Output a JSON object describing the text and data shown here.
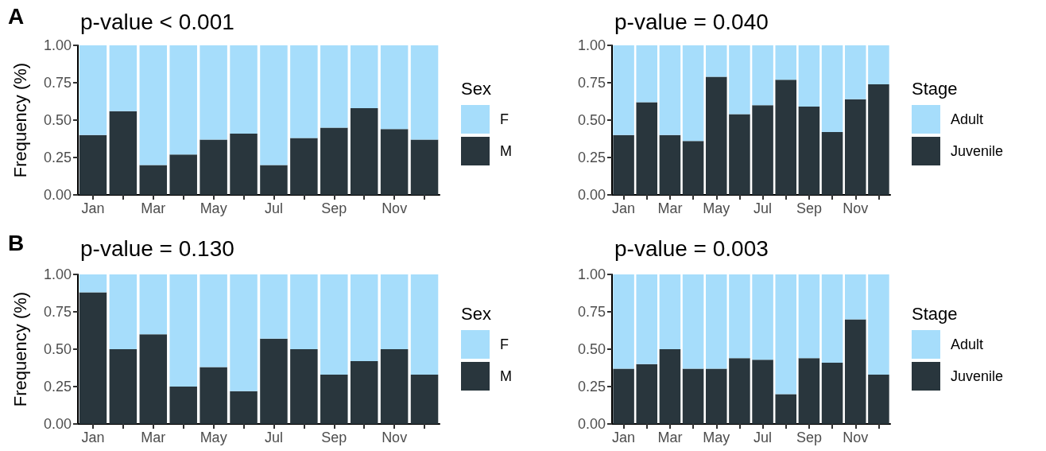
{
  "chart_data": [
    {
      "type": "bar",
      "title": "p-value < 0.001",
      "ylabel": "Frequency (%)",
      "legend_title": "Sex",
      "annotations": [
        "A"
      ],
      "categories": [
        "Jan",
        null,
        "Mar",
        null,
        "May",
        null,
        "Jul",
        null,
        "Sep",
        null,
        "Nov",
        null
      ],
      "stacked": true,
      "legend": "right",
      "grid": false,
      "ylim": [
        0,
        1
      ],
      "yticks": [
        {
          "value": 0,
          "label": "0.00"
        },
        {
          "value": 0.25,
          "label": "0.25"
        },
        {
          "value": 0.5,
          "label": "0.50"
        },
        {
          "value": 0.75,
          "label": "0.75"
        },
        {
          "value": 1,
          "label": "1.00"
        }
      ],
      "series": [
        {
          "name": "M",
          "color": "#29363d",
          "values": [
            0.4,
            0.56,
            0.2,
            0.27,
            0.37,
            0.41,
            0.2,
            0.38,
            0.45,
            0.58,
            0.44,
            0.37
          ]
        },
        {
          "name": "F",
          "color": "#a6ddfb",
          "values": [
            0.6,
            0.44,
            0.8,
            0.73,
            0.63,
            0.59,
            0.8,
            0.62,
            0.55,
            0.42,
            0.56,
            0.63
          ]
        }
      ]
    },
    {
      "type": "bar",
      "title": "p-value = 0.040",
      "legend_title": "Stage",
      "categories": [
        "Jan",
        null,
        "Mar",
        null,
        "May",
        null,
        "Jul",
        null,
        "Sep",
        null,
        "Nov",
        null
      ],
      "stacked": true,
      "legend": "right",
      "grid": false,
      "ylim": [
        0,
        1
      ],
      "yticks": [
        {
          "value": 0,
          "label": "0.00"
        },
        {
          "value": 0.25,
          "label": "0.25"
        },
        {
          "value": 0.5,
          "label": "0.50"
        },
        {
          "value": 0.75,
          "label": "0.75"
        },
        {
          "value": 1,
          "label": "1.00"
        }
      ],
      "series": [
        {
          "name": "Juvenile",
          "color": "#29363d",
          "values": [
            0.4,
            0.62,
            0.4,
            0.36,
            0.79,
            0.54,
            0.6,
            0.77,
            0.59,
            0.42,
            0.64,
            0.74
          ]
        },
        {
          "name": "Adult",
          "color": "#a6ddfb",
          "values": [
            0.6,
            0.38,
            0.6,
            0.64,
            0.21,
            0.46,
            0.4,
            0.23,
            0.41,
            0.58,
            0.36,
            0.26
          ]
        }
      ]
    },
    {
      "type": "bar",
      "title": "p-value = 0.130",
      "ylabel": "Frequency (%)",
      "legend_title": "Sex",
      "annotations": [
        "B"
      ],
      "categories": [
        "Jan",
        null,
        "Mar",
        null,
        "May",
        null,
        "Jul",
        null,
        "Sep",
        null,
        "Nov",
        null
      ],
      "stacked": true,
      "legend": "right",
      "grid": false,
      "ylim": [
        0,
        1
      ],
      "yticks": [
        {
          "value": 0,
          "label": "0.00"
        },
        {
          "value": 0.25,
          "label": "0.25"
        },
        {
          "value": 0.5,
          "label": "0.50"
        },
        {
          "value": 0.75,
          "label": "0.75"
        },
        {
          "value": 1,
          "label": "1.00"
        }
      ],
      "series": [
        {
          "name": "M",
          "color": "#29363d",
          "values": [
            0.88,
            0.5,
            0.6,
            0.25,
            0.38,
            0.22,
            0.57,
            0.5,
            0.33,
            0.42,
            0.5,
            0.33
          ]
        },
        {
          "name": "F",
          "color": "#a6ddfb",
          "values": [
            0.12,
            0.5,
            0.4,
            0.75,
            0.62,
            0.78,
            0.43,
            0.5,
            0.67,
            0.58,
            0.5,
            0.67
          ]
        }
      ]
    },
    {
      "type": "bar",
      "title": "p-value = 0.003",
      "legend_title": "Stage",
      "categories": [
        "Jan",
        null,
        "Mar",
        null,
        "May",
        null,
        "Jul",
        null,
        "Sep",
        null,
        "Nov",
        null
      ],
      "stacked": true,
      "legend": "right",
      "grid": false,
      "ylim": [
        0,
        1
      ],
      "yticks": [
        {
          "value": 0,
          "label": "0.00"
        },
        {
          "value": 0.25,
          "label": "0.25"
        },
        {
          "value": 0.5,
          "label": "0.50"
        },
        {
          "value": 0.75,
          "label": "0.75"
        },
        {
          "value": 1,
          "label": "1.00"
        }
      ],
      "series": [
        {
          "name": "Juvenile",
          "color": "#29363d",
          "values": [
            0.37,
            0.4,
            0.5,
            0.37,
            0.37,
            0.44,
            0.43,
            0.2,
            0.44,
            0.41,
            0.7,
            0.33
          ]
        },
        {
          "name": "Adult",
          "color": "#a6ddfb",
          "values": [
            0.63,
            0.6,
            0.5,
            0.63,
            0.63,
            0.56,
            0.57,
            0.8,
            0.56,
            0.59,
            0.3,
            0.67
          ]
        }
      ]
    }
  ]
}
